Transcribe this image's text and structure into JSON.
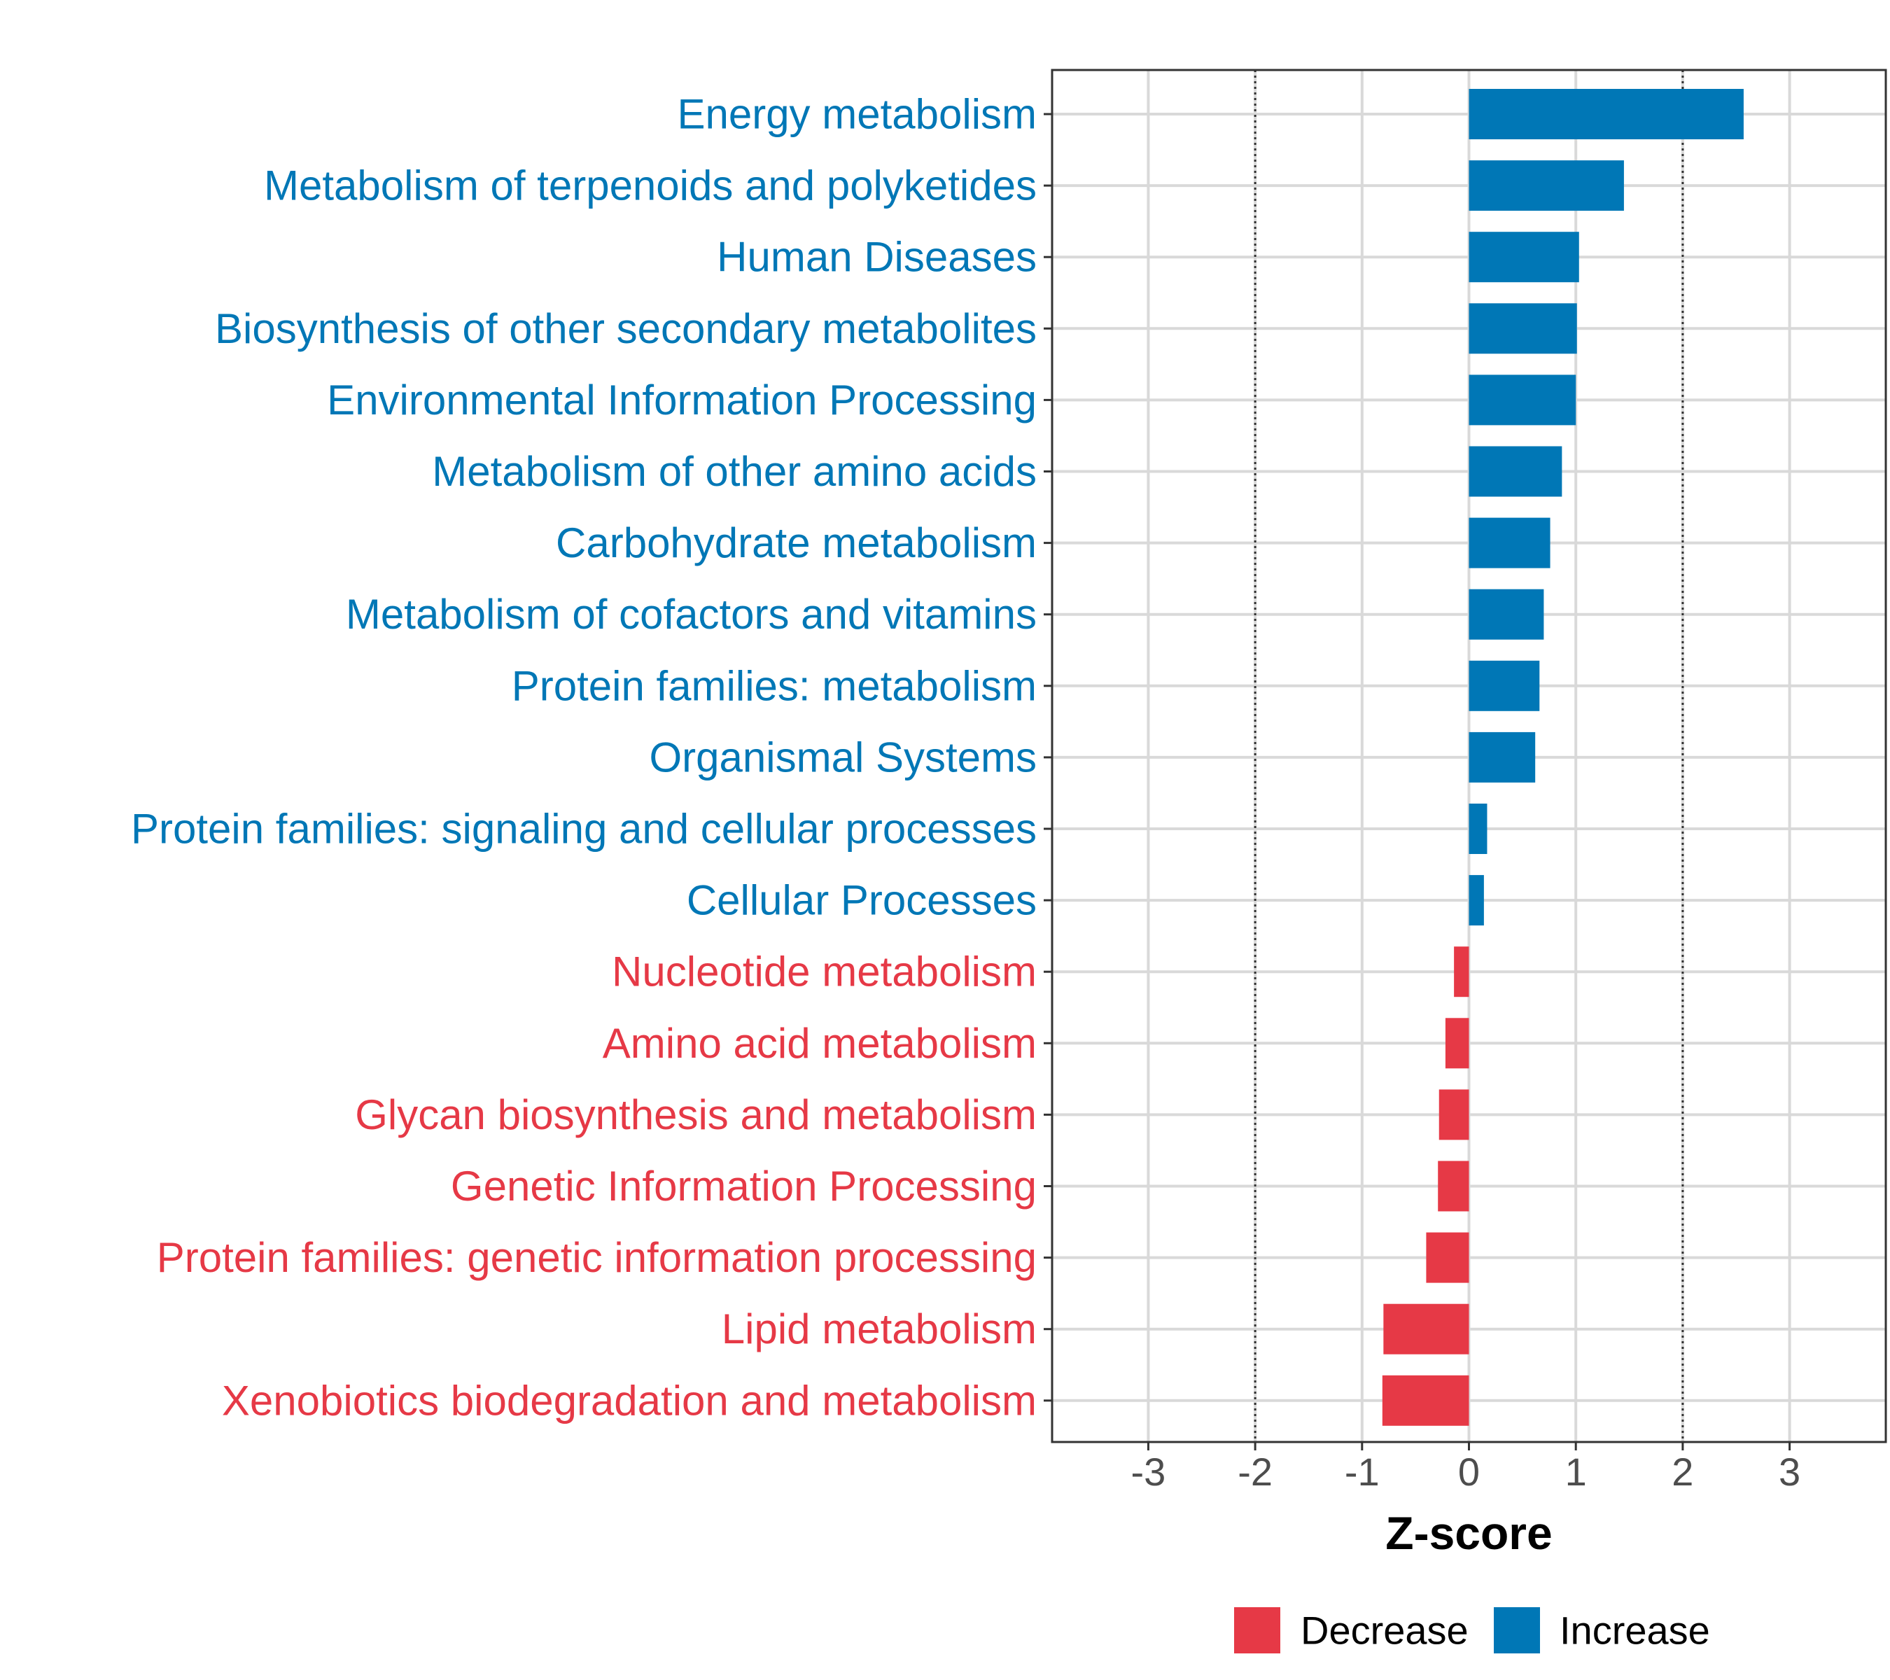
{
  "chart_data": {
    "type": "bar",
    "orientation": "horizontal",
    "title": "",
    "xlabel": "Z-score",
    "ylabel": "",
    "xlim": [
      -3.9,
      3.9
    ],
    "xticks": [
      -3,
      -2,
      -1,
      0,
      1,
      2,
      3
    ],
    "xtick_labels": [
      "-3",
      "-2",
      "-1",
      "0",
      "1",
      "2",
      "3"
    ],
    "reference_lines": [
      -2,
      2
    ],
    "grid": true,
    "categories": [
      "Energy metabolism",
      "Metabolism of terpenoids and polyketides",
      "Human Diseases",
      "Biosynthesis of other secondary metabolites",
      "Environmental Information Processing",
      "Metabolism of other amino acids",
      "Carbohydrate metabolism",
      "Metabolism of cofactors and vitamins",
      "Protein families: metabolism",
      "Organismal Systems",
      "Protein families: signaling and cellular processes",
      "Cellular Processes",
      "Nucleotide metabolism",
      "Amino acid metabolism",
      "Glycan biosynthesis and metabolism",
      "Genetic Information Processing",
      "Protein families: genetic information processing",
      "Lipid metabolism",
      "Xenobiotics biodegradation and metabolism"
    ],
    "values": [
      2.57,
      1.45,
      1.03,
      1.01,
      1.0,
      0.87,
      0.76,
      0.7,
      0.66,
      0.62,
      0.17,
      0.14,
      -0.14,
      -0.22,
      -0.28,
      -0.29,
      -0.4,
      -0.8,
      -0.81
    ],
    "groups": [
      "Increase",
      "Increase",
      "Increase",
      "Increase",
      "Increase",
      "Increase",
      "Increase",
      "Increase",
      "Increase",
      "Increase",
      "Increase",
      "Increase",
      "Decrease",
      "Decrease",
      "Decrease",
      "Decrease",
      "Decrease",
      "Decrease",
      "Decrease"
    ],
    "legend": {
      "position": "bottom",
      "entries": [
        {
          "label": "Decrease",
          "color": "#E63946"
        },
        {
          "label": "Increase",
          "color": "#0077B6"
        }
      ]
    },
    "colors": {
      "Decrease": "#E63946",
      "Increase": "#0077B6"
    }
  }
}
